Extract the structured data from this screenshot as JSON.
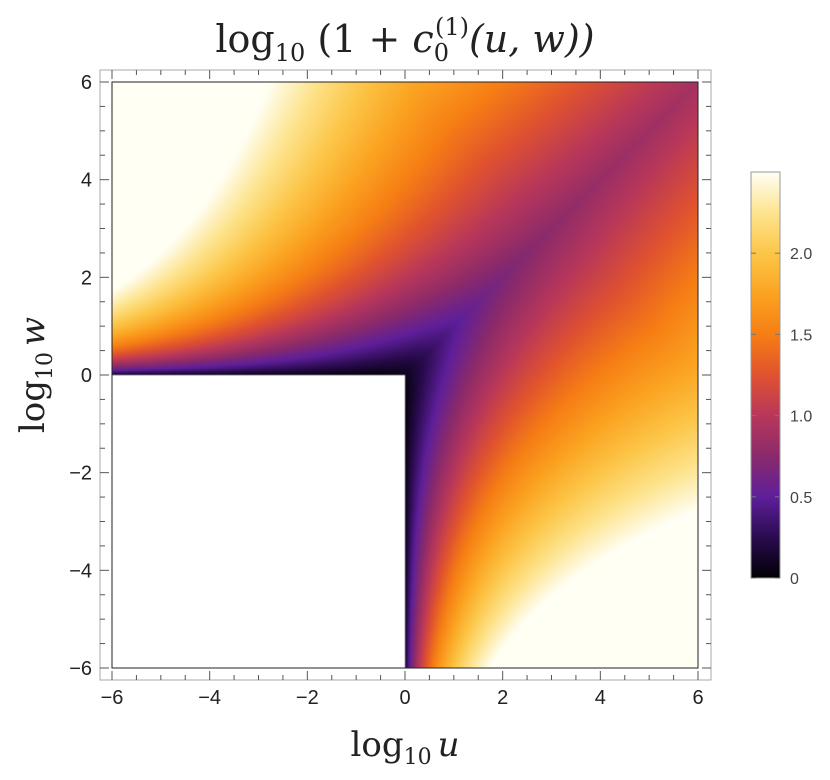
{
  "chart_data": {
    "type": "heatmap",
    "title": {
      "prefix": "log",
      "sub": "10",
      "open": " (1 + ",
      "var": "c",
      "var_sub": "0",
      "var_sup": "(1)",
      "args": "(u, w))"
    },
    "xlabel": {
      "prefix": "log",
      "sub": "10",
      "var": "u"
    },
    "ylabel": {
      "prefix": "log",
      "sub": "10",
      "var": "w"
    },
    "xlim": [
      -6,
      6
    ],
    "ylim": [
      -6,
      6
    ],
    "x_ticks": [
      -6,
      -4,
      -2,
      0,
      2,
      4,
      6
    ],
    "y_ticks": [
      -6,
      -4,
      -2,
      0,
      2,
      4,
      6
    ],
    "x_tick_labels": [
      "−6",
      "−4",
      "−2",
      "0",
      "2",
      "4",
      "6"
    ],
    "y_tick_labels": [
      "−6",
      "−4",
      "−2",
      "0",
      "2",
      "4",
      "6"
    ],
    "colorscale": {
      "name": "inferno-like",
      "min": 0,
      "max": 2.5,
      "ticks": [
        0,
        0.5,
        1.0,
        1.5,
        2.0
      ],
      "tick_labels": [
        "0",
        "0.5",
        "1.0",
        "1.5",
        "2.0"
      ],
      "stops": [
        {
          "value": 0.0,
          "color": "#000004"
        },
        {
          "value": 0.25,
          "color": "#2a0b4f"
        },
        {
          "value": 0.5,
          "color": "#5e1f9a"
        },
        {
          "value": 0.75,
          "color": "#8a2a6b"
        },
        {
          "value": 1.0,
          "color": "#b8375a"
        },
        {
          "value": 1.25,
          "color": "#e0522f"
        },
        {
          "value": 1.5,
          "color": "#f67e14"
        },
        {
          "value": 1.75,
          "color": "#fba321"
        },
        {
          "value": 2.0,
          "color": "#fcc648"
        },
        {
          "value": 2.25,
          "color": "#fde48e"
        },
        {
          "value": 2.5,
          "color": "#fffff4"
        }
      ]
    },
    "undefined_region": "log10 u < 0 and log10 w < 0 (left blank)",
    "samples": [
      {
        "x": -6,
        "y": 6,
        "z": 2.5
      },
      {
        "x": 6,
        "y": -6,
        "z": 2.5
      },
      {
        "x": 6,
        "y": 6,
        "z": 0.95
      },
      {
        "x": 0,
        "y": 0,
        "z": 0.3
      },
      {
        "x": -6,
        "y": 0,
        "z": 0.1
      },
      {
        "x": 0,
        "y": -6,
        "z": 0.05
      },
      {
        "x": 4,
        "y": 4,
        "z": 0.95
      },
      {
        "x": 2,
        "y": 2,
        "z": 1.0
      }
    ],
    "grid": false
  }
}
